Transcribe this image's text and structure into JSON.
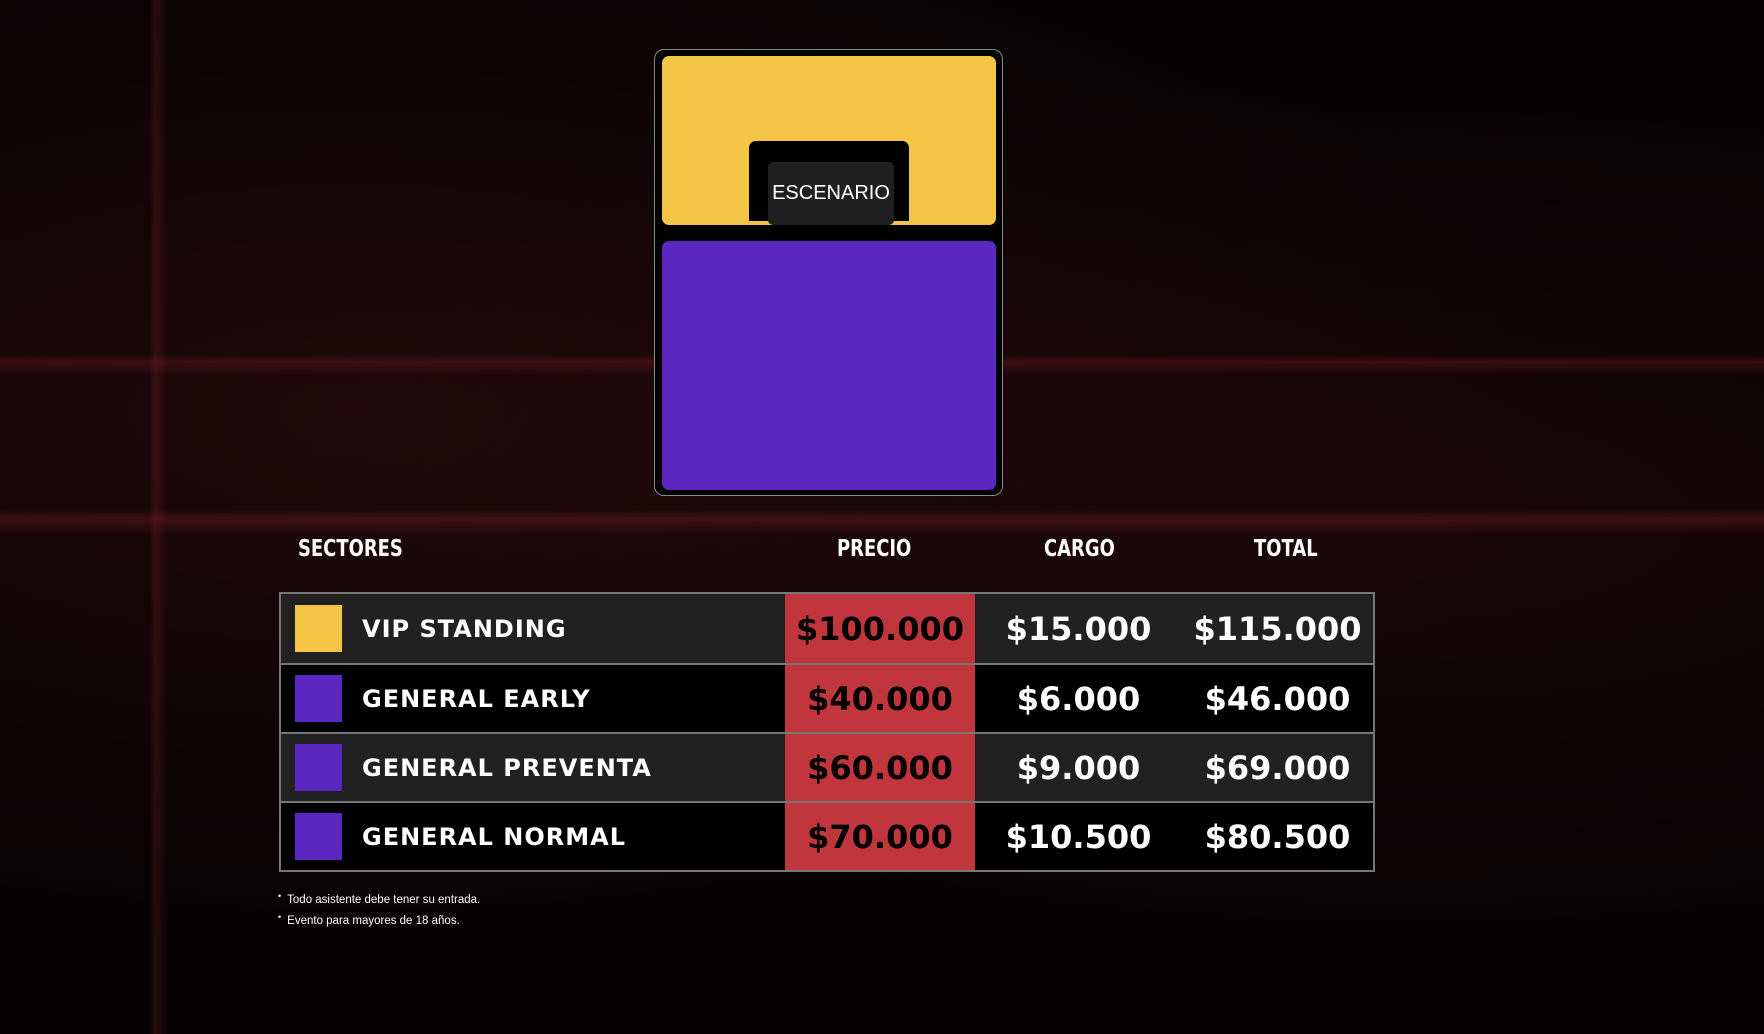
{
  "map": {
    "stage_label": "ESCENARIO",
    "colors": {
      "vip": "#f4c444",
      "general": "#5b27c0"
    }
  },
  "table": {
    "headers": {
      "sector": "SECTORES",
      "price": "PRECIO",
      "fee": "CARGO",
      "total": "TOTAL"
    },
    "rows": [
      {
        "sector": "VIP STANDING",
        "color": "#f4c444",
        "price": "$100.000",
        "fee": "$15.000",
        "total": "$115.000"
      },
      {
        "sector": "GENERAL EARLY",
        "color": "#5b27c0",
        "price": "$40.000",
        "fee": "$6.000",
        "total": "$46.000"
      },
      {
        "sector": "GENERAL PREVENTA",
        "color": "#5b27c0",
        "price": "$60.000",
        "fee": "$9.000",
        "total": "$69.000"
      },
      {
        "sector": "GENERAL NORMAL",
        "color": "#5b27c0",
        "price": "$70.000",
        "fee": "$10.500",
        "total": "$80.500"
      }
    ]
  },
  "notes": [
    "Todo asistente debe tener su entrada.",
    "Evento para mayores de 18 años."
  ]
}
